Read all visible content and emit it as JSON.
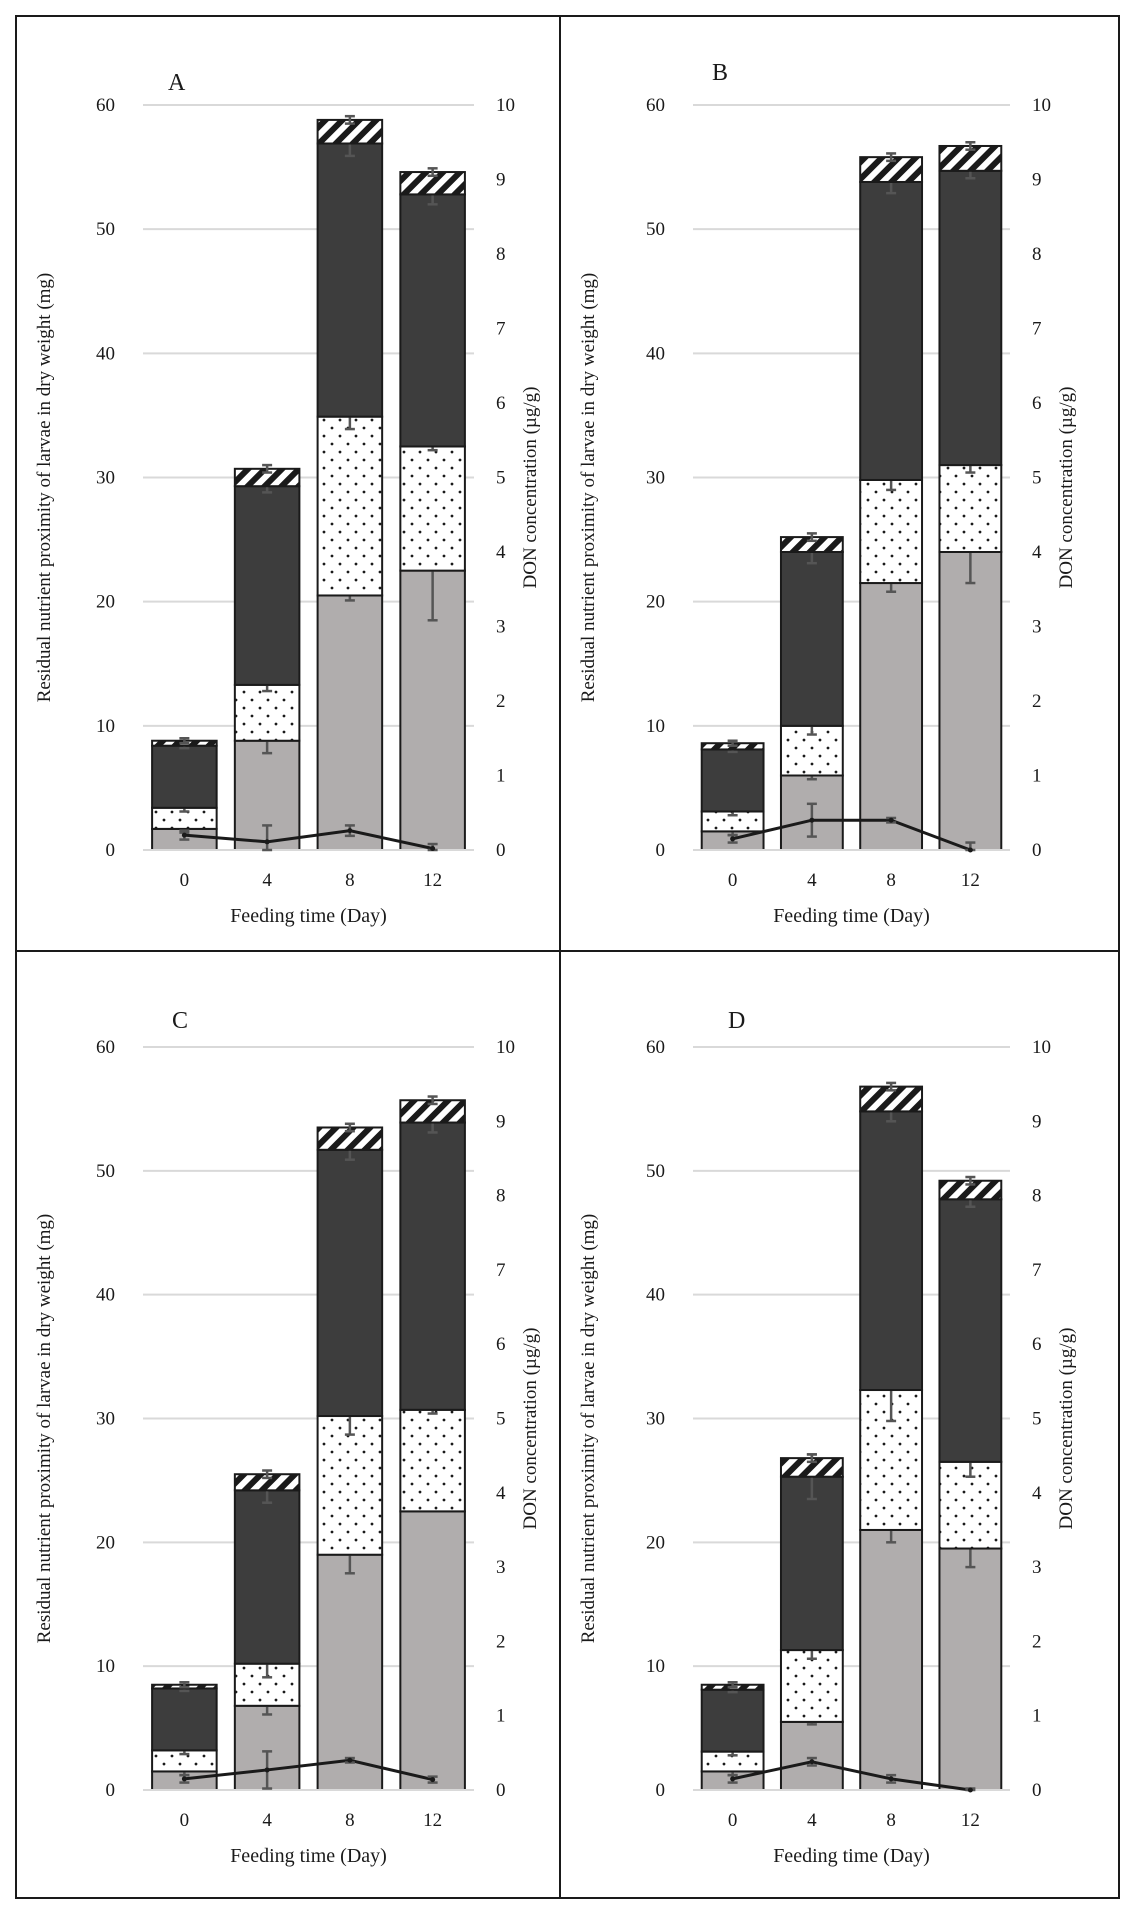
{
  "figure": {
    "colors": {
      "protein": "#3d3d3d",
      "ash_or_other": "#b0adad",
      "lipid_dots": "#ffffff",
      "hatch_top": "#ffffff",
      "line": "#1a1a1a",
      "error_bar": "#555555",
      "grid": "#d9d9d9",
      "border": "#1a1a1a"
    }
  },
  "chart_data": [
    {
      "panel": "A",
      "type": "bar",
      "stacked": true,
      "categories": [
        "0",
        "4",
        "8",
        "12"
      ],
      "xlabel": "Feeding time (Day)",
      "ylabel": "Residual nutrient proximity of larvae in dry weight (mg)",
      "y2label": "DON concentration (µg/g)",
      "ylim": [
        0,
        60
      ],
      "y2lim": [
        0,
        10
      ],
      "yticks": [
        "0",
        "10",
        "20",
        "30",
        "40",
        "50",
        "60"
      ],
      "y2ticks": [
        "0",
        "1",
        "2",
        "3",
        "4",
        "5",
        "6",
        "7",
        "8",
        "9",
        "10"
      ],
      "series": [
        {
          "name": "grey",
          "pattern": "solid-grey",
          "values": [
            1.7,
            8.8,
            20.5,
            22.5
          ],
          "errors": [
            0.3,
            1.0,
            0.4,
            4.0
          ]
        },
        {
          "name": "dotted",
          "pattern": "dots",
          "values": [
            1.7,
            4.5,
            14.4,
            10.0
          ],
          "errors": [
            0.3,
            0.5,
            1.0,
            0.3
          ]
        },
        {
          "name": "dark",
          "pattern": "solid-dark",
          "values": [
            5.0,
            16.0,
            22.0,
            20.3
          ],
          "errors": [
            0.2,
            0.5,
            1.0,
            0.8
          ]
        },
        {
          "name": "hatched",
          "pattern": "hatch",
          "values": [
            0.4,
            1.4,
            1.9,
            1.8
          ],
          "errors": [
            0.2,
            0.3,
            0.3,
            0.3
          ]
        }
      ],
      "line": {
        "name": "DON concentration",
        "axis": "y2",
        "values": [
          0.2,
          0.11,
          0.26,
          0.02
        ],
        "errors": [
          0.06,
          0.22,
          0.07,
          0.06
        ]
      }
    },
    {
      "panel": "B",
      "type": "bar",
      "stacked": true,
      "categories": [
        "0",
        "4",
        "8",
        "12"
      ],
      "xlabel": "Feeding time (Day)",
      "ylabel": "Residual nutrient proximity of larvae in dry weight (mg)",
      "y2label": "DON concentration (µg/g)",
      "ylim": [
        0,
        60
      ],
      "y2lim": [
        0,
        10
      ],
      "yticks": [
        "0",
        "10",
        "20",
        "30",
        "40",
        "50",
        "60"
      ],
      "y2ticks": [
        "0",
        "1",
        "2",
        "3",
        "4",
        "5",
        "6",
        "7",
        "8",
        "9",
        "10"
      ],
      "series": [
        {
          "name": "grey",
          "pattern": "solid-grey",
          "values": [
            1.5,
            6.0,
            21.5,
            24.0
          ],
          "errors": [
            0.3,
            0.3,
            0.7,
            2.5
          ]
        },
        {
          "name": "dotted",
          "pattern": "dots",
          "values": [
            1.6,
            4.0,
            8.3,
            7.0
          ],
          "errors": [
            0.3,
            0.7,
            0.8,
            0.6
          ]
        },
        {
          "name": "dark",
          "pattern": "solid-dark",
          "values": [
            5.0,
            14.0,
            24.0,
            23.7
          ],
          "errors": [
            0.2,
            0.9,
            0.9,
            0.6
          ]
        },
        {
          "name": "hatched",
          "pattern": "hatch",
          "values": [
            0.5,
            1.2,
            2.0,
            2.0
          ],
          "errors": [
            0.2,
            0.3,
            0.3,
            0.3
          ]
        }
      ],
      "line": {
        "name": "DON concentration",
        "axis": "y2",
        "values": [
          0.15,
          0.4,
          0.4,
          0.0
        ],
        "errors": [
          0.05,
          0.22,
          0.03,
          0.1
        ]
      }
    },
    {
      "panel": "C",
      "type": "bar",
      "stacked": true,
      "categories": [
        "0",
        "4",
        "8",
        "12"
      ],
      "xlabel": "Feeding time (Day)",
      "ylabel": "Residual nutrient proximity of larvae in dry weight (mg)",
      "y2label": "DON concentration (µg/g)",
      "ylim": [
        0,
        60
      ],
      "y2lim": [
        0,
        10
      ],
      "yticks": [
        "0",
        "10",
        "20",
        "30",
        "40",
        "50",
        "60"
      ],
      "y2ticks": [
        "0",
        "1",
        "2",
        "3",
        "4",
        "5",
        "6",
        "7",
        "8",
        "9",
        "10"
      ],
      "series": [
        {
          "name": "grey",
          "pattern": "solid-grey",
          "values": [
            1.5,
            6.8,
            19.0,
            22.5
          ],
          "errors": [
            0.3,
            0.7,
            1.5,
            0.0
          ]
        },
        {
          "name": "dotted",
          "pattern": "dots",
          "values": [
            1.7,
            3.4,
            11.2,
            8.2
          ],
          "errors": [
            0.3,
            1.1,
            1.5,
            0.3
          ]
        },
        {
          "name": "dark",
          "pattern": "solid-dark",
          "values": [
            5.0,
            14.0,
            21.5,
            23.2
          ],
          "errors": [
            0.2,
            1.0,
            0.8,
            0.8
          ]
        },
        {
          "name": "hatched",
          "pattern": "hatch",
          "values": [
            0.3,
            1.3,
            1.8,
            1.8
          ],
          "errors": [
            0.2,
            0.3,
            0.3,
            0.3
          ]
        }
      ],
      "line": {
        "name": "DON concentration",
        "axis": "y2",
        "values": [
          0.15,
          0.27,
          0.4,
          0.14
        ],
        "errors": [
          0.05,
          0.25,
          0.03,
          0.04
        ]
      }
    },
    {
      "panel": "D",
      "type": "bar",
      "stacked": true,
      "categories": [
        "0",
        "4",
        "8",
        "12"
      ],
      "xlabel": "Feeding time (Day)",
      "ylabel": "Residual nutrient proximity of larvae in dry weight (mg)",
      "y2label": "DON concentration (µg/g)",
      "ylim": [
        0,
        60
      ],
      "y2lim": [
        0,
        10
      ],
      "yticks": [
        "0",
        "10",
        "20",
        "30",
        "40",
        "50",
        "60"
      ],
      "y2ticks": [
        "0",
        "1",
        "2",
        "3",
        "4",
        "5",
        "6",
        "7",
        "8",
        "9",
        "10"
      ],
      "series": [
        {
          "name": "grey",
          "pattern": "solid-grey",
          "values": [
            1.5,
            5.5,
            21.0,
            19.5
          ],
          "errors": [
            0.3,
            0.2,
            1.0,
            1.5
          ]
        },
        {
          "name": "dotted",
          "pattern": "dots",
          "values": [
            1.6,
            5.8,
            11.3,
            7.0
          ],
          "errors": [
            0.3,
            0.7,
            2.5,
            1.2
          ]
        },
        {
          "name": "dark",
          "pattern": "solid-dark",
          "values": [
            5.0,
            14.0,
            22.5,
            21.2
          ],
          "errors": [
            0.2,
            1.8,
            0.8,
            0.6
          ]
        },
        {
          "name": "hatched",
          "pattern": "hatch",
          "values": [
            0.4,
            1.5,
            2.0,
            1.5
          ],
          "errors": [
            0.2,
            0.3,
            0.3,
            0.3
          ]
        }
      ],
      "line": {
        "name": "DON concentration",
        "axis": "y2",
        "values": [
          0.15,
          0.38,
          0.15,
          0.0
        ],
        "errors": [
          0.05,
          0.05,
          0.05,
          0.02
        ]
      }
    }
  ]
}
